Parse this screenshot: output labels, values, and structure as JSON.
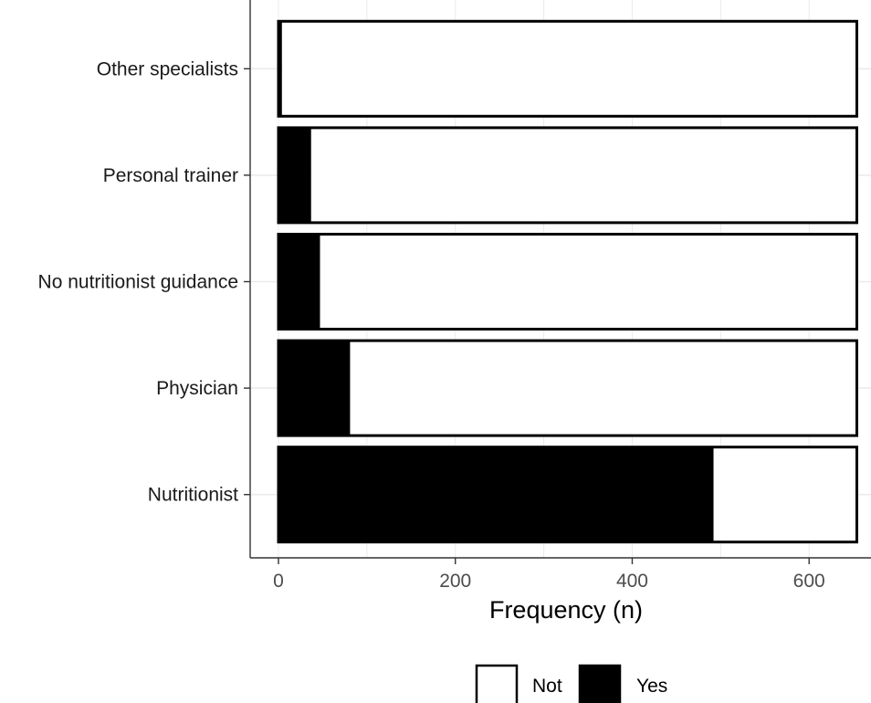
{
  "chart_data": {
    "type": "bar",
    "stacked": true,
    "orientation": "horizontal",
    "categories": [
      "Other specialists",
      "Personal trainer",
      "No nutritionist guidance",
      "Physician",
      "Nutritionist"
    ],
    "series": [
      {
        "name": "Yes",
        "color": "#000000",
        "values": [
          4,
          37,
          47,
          81,
          492
        ]
      },
      {
        "name": "Not",
        "color": "#ffffff",
        "values": [
          650,
          617,
          607,
          573,
          162
        ]
      }
    ],
    "xlabel": "Frequency (n)",
    "ylabel": "",
    "xlim": [
      -32,
      670
    ],
    "xticks": [
      0,
      200,
      400,
      600
    ],
    "grid": true,
    "legend": {
      "position": "bottom",
      "entries": [
        "Not",
        "Yes"
      ]
    }
  }
}
